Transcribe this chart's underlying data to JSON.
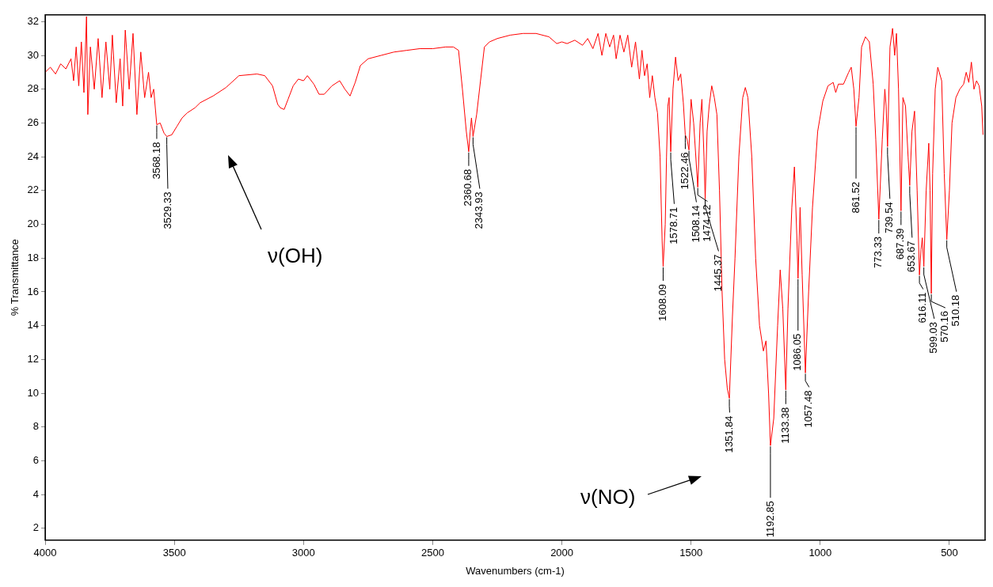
{
  "chart_data": {
    "type": "line",
    "xlabel": "Wavenumbers (cm-1)",
    "ylabel": "% Transmittance",
    "xlim": [
      4000,
      362
    ],
    "xticks": [
      4000,
      3500,
      3000,
      2500,
      2000,
      1500,
      1000,
      500
    ],
    "ylim": [
      1.3,
      32.4
    ],
    "yticks": [
      2,
      4,
      6,
      8,
      10,
      12,
      14,
      16,
      18,
      20,
      22,
      24,
      26,
      28,
      30,
      32
    ],
    "grid": false,
    "legend": false,
    "marker": "none",
    "line_style": "solid",
    "series": [
      {
        "color": "#ff0000",
        "x": [
          4000,
          3980,
          3960,
          3940,
          3920,
          3900,
          3890,
          3880,
          3870,
          3860,
          3850,
          3840,
          3835,
          3825,
          3810,
          3795,
          3780,
          3765,
          3750,
          3740,
          3725,
          3710,
          3700,
          3690,
          3675,
          3660,
          3645,
          3630,
          3615,
          3600,
          3590,
          3580,
          3568.18,
          3555,
          3540,
          3529.33,
          3510,
          3490,
          3470,
          3450,
          3420,
          3400,
          3350,
          3300,
          3250,
          3180,
          3150,
          3120,
          3100,
          3090,
          3075,
          3060,
          3040,
          3020,
          3000,
          2985,
          2960,
          2940,
          2920,
          2890,
          2860,
          2840,
          2820,
          2800,
          2780,
          2750,
          2700,
          2650,
          2600,
          2550,
          2500,
          2450,
          2420,
          2400,
          2385,
          2370,
          2360.68,
          2355,
          2350,
          2343.93,
          2330,
          2315,
          2300,
          2280,
          2250,
          2200,
          2150,
          2100,
          2050,
          2020,
          2000,
          1980,
          1950,
          1920,
          1900,
          1880,
          1860,
          1845,
          1830,
          1815,
          1800,
          1790,
          1775,
          1760,
          1745,
          1730,
          1715,
          1700,
          1690,
          1680,
          1670,
          1660,
          1650,
          1640,
          1630,
          1620,
          1612,
          1608.09,
          1600,
          1595,
          1590,
          1585,
          1578.71,
          1570,
          1560,
          1550,
          1540,
          1530,
          1522.46,
          1515,
          1508.14,
          1500,
          1490,
          1474.12,
          1465,
          1458,
          1450,
          1445.37,
          1438,
          1430,
          1420,
          1410,
          1400,
          1390,
          1380,
          1370,
          1360,
          1351.84,
          1340,
          1330,
          1315,
          1300,
          1290,
          1280,
          1265,
          1250,
          1235,
          1220,
          1210,
          1200,
          1192.85,
          1180,
          1165,
          1155,
          1145,
          1133.38,
          1125,
          1110,
          1100,
          1090,
          1086.05,
          1078,
          1070,
          1057.48,
          1045,
          1030,
          1010,
          990,
          970,
          950,
          940,
          930,
          910,
          890,
          880,
          870,
          861.52,
          850,
          840,
          825,
          810,
          795,
          785,
          773.33,
          760,
          750,
          745,
          739.54,
          730,
          720,
          712,
          705,
          697,
          687.39,
          680,
          670,
          660,
          653.67,
          645,
          635,
          625,
          616.11,
          610,
          605,
          599.03,
          590,
          580,
          575,
          570.16,
          565,
          555,
          545,
          530,
          520,
          510.18,
          500,
          490,
          475,
          460,
          445,
          435,
          425,
          415,
          405,
          395,
          385,
          375,
          370
        ],
        "values": [
          29.0,
          29.3,
          28.9,
          29.5,
          29.2,
          29.8,
          28.5,
          30.5,
          28.2,
          30.8,
          27.8,
          32.3,
          26.5,
          30.5,
          28.0,
          31.0,
          27.5,
          30.8,
          28.0,
          31.2,
          27.2,
          29.8,
          27.0,
          31.5,
          28.0,
          31.3,
          26.5,
          30.2,
          27.5,
          29.0,
          27.5,
          28.0,
          25.9,
          26.0,
          25.4,
          25.2,
          25.3,
          25.8,
          26.3,
          26.6,
          26.9,
          27.2,
          27.6,
          28.1,
          28.8,
          28.9,
          28.8,
          28.2,
          27.1,
          26.9,
          26.8,
          27.4,
          28.2,
          28.6,
          28.5,
          28.8,
          28.3,
          27.7,
          27.7,
          28.2,
          28.5,
          28.0,
          27.6,
          28.4,
          29.4,
          29.8,
          30.0,
          30.2,
          30.3,
          30.4,
          30.4,
          30.5,
          30.5,
          30.3,
          28.0,
          25.5,
          24.3,
          25.5,
          26.3,
          25.2,
          26.5,
          28.5,
          30.5,
          30.8,
          31.0,
          31.2,
          31.3,
          31.3,
          31.1,
          30.7,
          30.8,
          30.7,
          30.9,
          30.6,
          31.0,
          30.4,
          31.3,
          30.0,
          31.3,
          30.5,
          31.2,
          29.8,
          31.2,
          30.2,
          31.2,
          29.3,
          30.8,
          28.6,
          30.3,
          28.8,
          29.5,
          27.5,
          28.8,
          27.5,
          26.6,
          24.0,
          19.0,
          17.5,
          20.0,
          24.0,
          27.0,
          27.5,
          24.3,
          28.0,
          29.9,
          28.5,
          28.9,
          27.2,
          25.3,
          25.0,
          24.4,
          27.4,
          26.0,
          22.2,
          26.0,
          27.4,
          24.0,
          21.5,
          25.5,
          27.0,
          28.2,
          27.5,
          26.5,
          22.0,
          16.0,
          12.0,
          10.3,
          9.7,
          14.5,
          18.0,
          24.0,
          27.5,
          28.1,
          27.5,
          24.0,
          18.0,
          14.0,
          12.5,
          13.1,
          10.0,
          6.9,
          8.5,
          14.0,
          17.3,
          15.0,
          10.2,
          15.0,
          21.0,
          23.4,
          19.0,
          16.8,
          21.0,
          17.0,
          11.2,
          16.0,
          21.0,
          25.5,
          27.3,
          28.2,
          28.4,
          27.8,
          28.3,
          28.3,
          29.0,
          29.3,
          28.0,
          25.8,
          27.5,
          30.5,
          31.1,
          30.8,
          28.3,
          25.0,
          20.3,
          25.0,
          28.0,
          27.0,
          24.6,
          30.5,
          31.6,
          30.0,
          31.3,
          28.0,
          20.8,
          27.5,
          27.0,
          24.0,
          22.3,
          25.5,
          26.7,
          22.0,
          17.0,
          18.5,
          19.2,
          17.5,
          22.0,
          24.8,
          22.0,
          15.9,
          23.0,
          28.0,
          29.3,
          28.5,
          23.0,
          19.1,
          22.0,
          26.0,
          27.5,
          28.0,
          28.3,
          29.0,
          28.4,
          29.6,
          28.0,
          28.5,
          28.2,
          27.0,
          25.3
        ]
      }
    ],
    "annotations": [
      {
        "text": "3568.18",
        "x": 3568.18,
        "y": 25.9
      },
      {
        "text": "3529.33",
        "x": 3529.33,
        "y": 25.2
      },
      {
        "text": "2360.68",
        "x": 2360.68,
        "y": 24.3
      },
      {
        "text": "2343.93",
        "x": 2343.93,
        "y": 25.2
      },
      {
        "text": "1608.09",
        "x": 1608.09,
        "y": 17.5
      },
      {
        "text": "1578.71",
        "x": 1578.71,
        "y": 24.3
      },
      {
        "text": "1522.46",
        "x": 1522.46,
        "y": 25.3
      },
      {
        "text": "1508.14",
        "x": 1508.14,
        "y": 24.4
      },
      {
        "text": "1474.12",
        "x": 1474.12,
        "y": 22.2
      },
      {
        "text": "1445.37",
        "x": 1445.37,
        "y": 21.5
      },
      {
        "text": "1351.84",
        "x": 1351.84,
        "y": 9.7
      },
      {
        "text": "1192.85",
        "x": 1192.85,
        "y": 6.9
      },
      {
        "text": "1133.38",
        "x": 1133.38,
        "y": 10.2
      },
      {
        "text": "1086.05",
        "x": 1086.05,
        "y": 16.8
      },
      {
        "text": "1057.48",
        "x": 1057.48,
        "y": 11.2
      },
      {
        "text": "861.52",
        "x": 861.52,
        "y": 25.8
      },
      {
        "text": "773.33",
        "x": 773.33,
        "y": 20.3
      },
      {
        "text": "739.54",
        "x": 739.54,
        "y": 24.6
      },
      {
        "text": "687.39",
        "x": 687.39,
        "y": 20.8
      },
      {
        "text": "653.67",
        "x": 653.67,
        "y": 22.3
      },
      {
        "text": "616.11",
        "x": 616.11,
        "y": 17.0
      },
      {
        "text": "599.03",
        "x": 599.03,
        "y": 17.5
      },
      {
        "text": "570.16",
        "x": 570.16,
        "y": 15.9
      },
      {
        "text": "510.18",
        "x": 510.18,
        "y": 19.1
      },
      "ν(OH)",
      "ν(NO)"
    ]
  }
}
